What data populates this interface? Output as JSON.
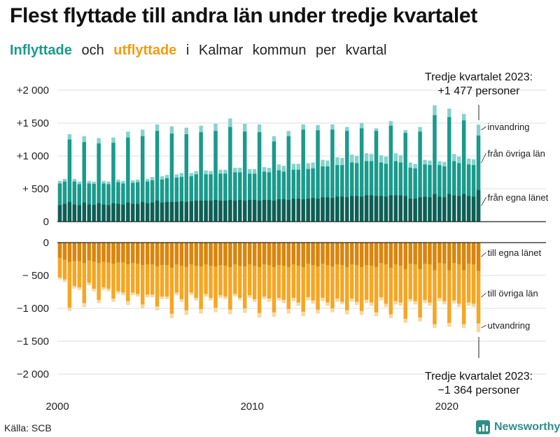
{
  "title": "Flest flyttade till andra län under tredje kvartalet",
  "subtitle": {
    "in_word": "Inflyttade",
    "and_word": "och",
    "out_word": "utflyttade",
    "rest_words": [
      "i",
      "Kalmar",
      "kommun",
      "per",
      "kvartal"
    ]
  },
  "colors": {
    "in_egna": "#0f5e55",
    "in_ovriga": "#1a9a8c",
    "in_invandring": "#86d3cb",
    "out_egna": "#d9850e",
    "out_ovriga": "#f5a623",
    "out_utvandring": "#fad7a0"
  },
  "source": "Källa: SCB",
  "brand": "Newsworthy",
  "chart_data": {
    "type": "bar",
    "stacked": true,
    "title": "Flest flyttade till andra län under tredje kvartalet",
    "x_start": "2000 Q1",
    "x_end": "2023 Q3",
    "x_ticks": [
      "2000",
      "2010",
      "2020"
    ],
    "y_ticks": [
      "+2 000",
      "+1 500",
      "+1 000",
      "+ 500",
      "0",
      "0",
      "− 500",
      "−1 000",
      "−1 500",
      "−2 000"
    ],
    "upper_ylim": [
      0,
      2000
    ],
    "lower_ylim": [
      -2000,
      0
    ],
    "series_labels": {
      "invandring": "invandring",
      "ovriga_in": "från övriga län",
      "egna_in": "från egna länet",
      "egna_out": "till egna länet",
      "ovriga_out": "till övriga län",
      "utvandring": "utvandring"
    },
    "annotation_in": [
      "Tredje kvartalet 2023:",
      "+1 477 personer"
    ],
    "annotation_out": [
      "Tredje kvartalet 2023:",
      "−1 364 personer"
    ],
    "inflyttade_totals": [
      620,
      650,
      1330,
      650,
      610,
      1300,
      620,
      610,
      1270,
      620,
      610,
      1280,
      640,
      620,
      1370,
      630,
      640,
      1400,
      650,
      680,
      1480,
      690,
      710,
      1450,
      720,
      740,
      1430,
      740,
      770,
      1460,
      780,
      770,
      1490,
      790,
      790,
      1570,
      820,
      820,
      1490,
      800,
      800,
      1480,
      830,
      820,
      1300,
      870,
      850,
      1380,
      880,
      880,
      1480,
      890,
      900,
      1470,
      940,
      930,
      1480,
      980,
      970,
      1440,
      1020,
      1000,
      1500,
      1040,
      1030,
      1420,
      1010,
      990,
      1530,
      1040,
      1010,
      1390,
      900,
      880,
      1440,
      940,
      930,
      1770,
      920,
      910,
      1720,
      1030,
      990,
      1640,
      960,
      950,
      1477
    ],
    "fran_egna_lanet": [
      250,
      270,
      300,
      260,
      250,
      290,
      260,
      255,
      280,
      260,
      250,
      280,
      270,
      260,
      290,
      270,
      270,
      300,
      280,
      290,
      320,
      290,
      300,
      300,
      300,
      310,
      300,
      310,
      320,
      320,
      320,
      320,
      330,
      320,
      320,
      330,
      320,
      330,
      320,
      330,
      330,
      320,
      330,
      330,
      320,
      340,
      340,
      330,
      350,
      350,
      340,
      350,
      360,
      350,
      370,
      370,
      360,
      380,
      380,
      370,
      390,
      390,
      380,
      400,
      400,
      390,
      390,
      380,
      400,
      400,
      400,
      390,
      350,
      350,
      370,
      380,
      370,
      420,
      380,
      370,
      420,
      400,
      390,
      420,
      390,
      380,
      480
    ],
    "fran_ovriga_lan": [
      330,
      340,
      950,
      350,
      320,
      920,
      320,
      320,
      910,
      320,
      320,
      920,
      330,
      320,
      990,
      320,
      330,
      1000,
      330,
      340,
      1060,
      350,
      360,
      1040,
      370,
      370,
      1030,
      380,
      400,
      1040,
      400,
      400,
      1050,
      410,
      410,
      1110,
      430,
      420,
      1050,
      400,
      400,
      1040,
      430,
      420,
      900,
      440,
      420,
      970,
      440,
      440,
      1060,
      450,
      450,
      1040,
      470,
      470,
      1040,
      480,
      480,
      1010,
      510,
      500,
      1040,
      520,
      520,
      990,
      510,
      500,
      1060,
      520,
      500,
      960,
      470,
      460,
      1000,
      490,
      490,
      1200,
      480,
      470,
      1170,
      520,
      500,
      1120,
      480,
      480,
      830
    ],
    "invandring": [
      40,
      40,
      80,
      40,
      40,
      90,
      40,
      35,
      80,
      40,
      40,
      80,
      40,
      40,
      90,
      40,
      40,
      100,
      40,
      50,
      100,
      50,
      50,
      110,
      50,
      60,
      100,
      50,
      50,
      100,
      60,
      50,
      110,
      60,
      60,
      130,
      70,
      70,
      120,
      70,
      70,
      120,
      70,
      70,
      80,
      90,
      90,
      80,
      90,
      90,
      80,
      90,
      100,
      80,
      100,
      90,
      80,
      120,
      110,
      60,
      120,
      110,
      110,
      120,
      120,
      120,
      120,
      110,
      130,
      120,
      110,
      40,
      80,
      70,
      70,
      70,
      70,
      150,
      60,
      70,
      130,
      130,
      100,
      100,
      90,
      90,
      167
    ],
    "utflyttade_totals": [
      560,
      600,
      1040,
      700,
      720,
      980,
      650,
      740,
      920,
      720,
      740,
      900,
      780,
      800,
      950,
      800,
      820,
      1000,
      830,
      830,
      1030,
      860,
      860,
      1150,
      800,
      900,
      1100,
      800,
      880,
      1080,
      820,
      880,
      1060,
      840,
      860,
      1090,
      820,
      880,
      1070,
      840,
      900,
      1140,
      860,
      900,
      1130,
      880,
      920,
      1080,
      890,
      960,
      1120,
      880,
      930,
      1080,
      890,
      960,
      1060,
      900,
      940,
      1090,
      900,
      950,
      1100,
      920,
      960,
      1120,
      880,
      980,
      1150,
      940,
      960,
      1220,
      900,
      940,
      1200,
      920,
      960,
      1300,
      890,
      940,
      1280,
      930,
      980,
      1300,
      960,
      980,
      1364
    ],
    "till_egna_lanet": [
      230,
      260,
      290,
      280,
      280,
      310,
      270,
      290,
      310,
      290,
      300,
      320,
      300,
      300,
      330,
      310,
      320,
      340,
      330,
      330,
      360,
      340,
      340,
      380,
      330,
      350,
      370,
      330,
      350,
      360,
      330,
      350,
      360,
      340,
      350,
      370,
      330,
      350,
      360,
      330,
      350,
      370,
      330,
      340,
      370,
      340,
      350,
      370,
      330,
      350,
      370,
      320,
      340,
      360,
      320,
      340,
      360,
      330,
      340,
      370,
      330,
      340,
      370,
      340,
      350,
      370,
      310,
      330,
      380,
      330,
      350,
      400,
      320,
      330,
      400,
      320,
      330,
      420,
      310,
      320,
      420,
      310,
      330,
      420,
      320,
      330,
      430
    ],
    "till_ovriga_lan": [
      300,
      300,
      700,
      380,
      400,
      610,
      340,
      410,
      560,
      390,
      400,
      530,
      440,
      460,
      560,
      450,
      460,
      600,
      460,
      460,
      610,
      480,
      480,
      700,
      430,
      510,
      660,
      430,
      490,
      650,
      450,
      490,
      630,
      460,
      470,
      650,
      450,
      490,
      640,
      470,
      510,
      700,
      490,
      510,
      690,
      500,
      520,
      640,
      510,
      560,
      680,
      510,
      540,
      660,
      520,
      570,
      640,
      520,
      560,
      660,
      520,
      560,
      670,
      530,
      560,
      690,
      520,
      600,
      710,
      560,
      560,
      760,
      540,
      560,
      740,
      550,
      580,
      820,
      530,
      570,
      800,
      570,
      600,
      820,
      590,
      600,
      800
    ],
    "utvandring": [
      30,
      40,
      50,
      40,
      40,
      60,
      40,
      40,
      50,
      40,
      40,
      50,
      40,
      40,
      60,
      40,
      40,
      60,
      40,
      40,
      60,
      40,
      40,
      70,
      40,
      40,
      70,
      40,
      40,
      70,
      40,
      40,
      70,
      40,
      40,
      70,
      40,
      40,
      70,
      40,
      40,
      70,
      40,
      50,
      70,
      40,
      50,
      70,
      50,
      50,
      70,
      50,
      50,
      60,
      50,
      50,
      60,
      50,
      40,
      60,
      50,
      50,
      60,
      50,
      50,
      60,
      50,
      50,
      60,
      50,
      50,
      60,
      40,
      50,
      60,
      50,
      50,
      60,
      50,
      50,
      60,
      50,
      50,
      60,
      50,
      50,
      134
    ]
  }
}
